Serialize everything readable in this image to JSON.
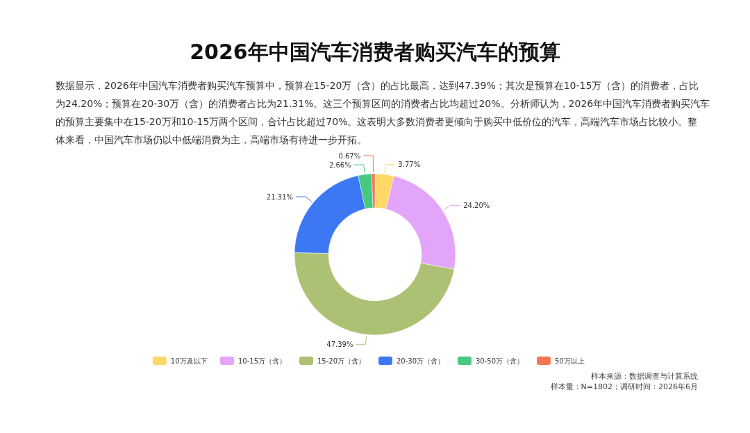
{
  "chart_data": {
    "type": "donut",
    "title": "2026年中国汽车消费者购买汽车的预算",
    "subtitle": "数据显示，2026年中国汽车消费者购买汽车预算中，预算在15-20万（含）的占比最高，达到47.39%；其次是预算在10-15万（含）的消费者，占比为24.20%；预算在20-30万（含）的消费者占比为21.31%。这三个预算区间的消费者占比均超过20%。分析师认为，2026年中国汽车消费者购买汽车的预算主要集中在15-20万和10-15万两个区间，合计占比超过70%。这表明大多数消费者更倾向于购买中低价位的汽车，高端汽车市场占比较小。整体来看，中国汽车市场仍以中低端消费为主，高端市场有待进一步开拓。",
    "categories": [
      "10万及以下",
      "10-15万（含）",
      "15-20万（含）",
      "20-30万（含）",
      "30-50万（含）",
      "50万以上"
    ],
    "values": [
      3.77,
      24.2,
      47.39,
      21.31,
      2.66,
      0.67
    ],
    "value_labels": [
      "3.77%",
      "24.20%",
      "47.39%",
      "21.31%",
      "2.66%",
      "0.67%"
    ],
    "colors": [
      "#fdd865",
      "#e3a5f9",
      "#adc174",
      "#3d78f4",
      "#47c97f",
      "#f47652"
    ],
    "legend": "bottom",
    "annotations": [
      "样本来源：数据调查与计算系统",
      "样本量：N=1802；调研时间：2026年6月"
    ]
  }
}
